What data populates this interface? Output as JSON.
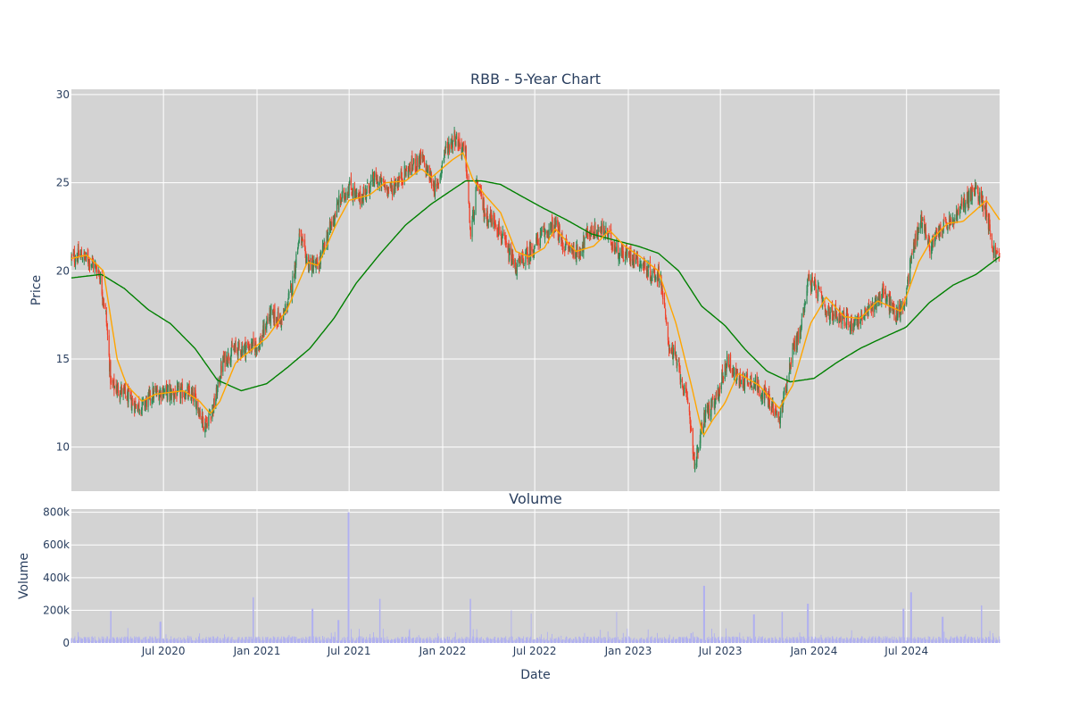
{
  "chart_data": [
    {
      "type": "candlestick",
      "title": "RBB - 5-Year Chart",
      "xlabel": "",
      "ylabel": "Price",
      "x_range": [
        "2020-01-02",
        "2024-12-31"
      ],
      "ylim": [
        7.5,
        30.3
      ],
      "y_ticks": [
        10,
        15,
        20,
        25,
        30
      ],
      "grid": true,
      "colors": {
        "up": "#2e8b57",
        "down": "#f0412a",
        "ma_short": "#ffa500",
        "ma_long": "#008000",
        "plot_bg": "#d3d3d3"
      },
      "close_anchors": [
        [
          "2020-01-02",
          20.7
        ],
        [
          "2020-01-20",
          20.9
        ],
        [
          "2020-02-10",
          20.5
        ],
        [
          "2020-02-25",
          20.0
        ],
        [
          "2020-03-10",
          17.5
        ],
        [
          "2020-03-20",
          13.5
        ],
        [
          "2020-04-10",
          13.2
        ],
        [
          "2020-05-01",
          12.5
        ],
        [
          "2020-05-20",
          12.3
        ],
        [
          "2020-06-10",
          13.0
        ],
        [
          "2020-07-01",
          13.2
        ],
        [
          "2020-07-20",
          13.0
        ],
        [
          "2020-08-10",
          13.1
        ],
        [
          "2020-09-01",
          12.8
        ],
        [
          "2020-09-20",
          11.2
        ],
        [
          "2020-10-10",
          12.5
        ],
        [
          "2020-10-25",
          14.8
        ],
        [
          "2020-11-15",
          15.5
        ],
        [
          "2021-01-05",
          15.8
        ],
        [
          "2021-01-25",
          17.5
        ],
        [
          "2021-02-20",
          17.2
        ],
        [
          "2021-03-10",
          19.0
        ],
        [
          "2021-03-25",
          22.0
        ],
        [
          "2021-04-10",
          20.5
        ],
        [
          "2021-05-01",
          20.2
        ],
        [
          "2021-05-20",
          22.0
        ],
        [
          "2021-06-10",
          23.8
        ],
        [
          "2021-07-01",
          24.8
        ],
        [
          "2021-07-20",
          24.0
        ],
        [
          "2021-08-20",
          25.2
        ],
        [
          "2021-09-20",
          24.6
        ],
        [
          "2021-10-20",
          25.6
        ],
        [
          "2021-11-20",
          26.4
        ],
        [
          "2021-12-20",
          24.5
        ],
        [
          "2022-01-05",
          26.8
        ],
        [
          "2022-01-25",
          27.6
        ],
        [
          "2022-02-15",
          26.6
        ],
        [
          "2022-02-25",
          22.0
        ],
        [
          "2022-03-10",
          25.0
        ],
        [
          "2022-03-25",
          23.2
        ],
        [
          "2022-04-15",
          22.8
        ],
        [
          "2022-05-10",
          21.0
        ],
        [
          "2022-05-25",
          20.2
        ],
        [
          "2022-06-20",
          21.0
        ],
        [
          "2022-07-15",
          22.0
        ],
        [
          "2022-08-10",
          22.6
        ],
        [
          "2022-08-25",
          21.5
        ],
        [
          "2022-09-25",
          21.0
        ],
        [
          "2022-10-15",
          22.2
        ],
        [
          "2022-11-15",
          22.3
        ],
        [
          "2022-12-15",
          21.0
        ],
        [
          "2023-01-15",
          20.8
        ],
        [
          "2023-02-15",
          19.8
        ],
        [
          "2023-03-05",
          19.8
        ],
        [
          "2023-03-20",
          16.0
        ],
        [
          "2023-04-10",
          14.5
        ],
        [
          "2023-05-01",
          12.0
        ],
        [
          "2023-05-12",
          8.9
        ],
        [
          "2023-06-01",
          12.0
        ],
        [
          "2023-06-20",
          12.4
        ],
        [
          "2023-07-15",
          15.0
        ],
        [
          "2023-08-05",
          13.8
        ],
        [
          "2023-09-01",
          13.8
        ],
        [
          "2023-10-01",
          12.8
        ],
        [
          "2023-10-25",
          11.5
        ],
        [
          "2023-11-20",
          15.5
        ],
        [
          "2023-12-05",
          16.5
        ],
        [
          "2023-12-20",
          19.5
        ],
        [
          "2024-01-10",
          18.8
        ],
        [
          "2024-01-25",
          17.5
        ],
        [
          "2024-02-15",
          17.6
        ],
        [
          "2024-03-15",
          17.0
        ],
        [
          "2024-04-15",
          17.6
        ],
        [
          "2024-05-15",
          18.8
        ],
        [
          "2024-06-10",
          17.5
        ],
        [
          "2024-06-25",
          18.0
        ],
        [
          "2024-07-15",
          21.5
        ],
        [
          "2024-08-01",
          23.0
        ],
        [
          "2024-08-15",
          21.3
        ],
        [
          "2024-09-10",
          22.5
        ],
        [
          "2024-10-01",
          22.8
        ],
        [
          "2024-10-25",
          24.0
        ],
        [
          "2024-11-15",
          24.6
        ],
        [
          "2024-12-05",
          23.5
        ],
        [
          "2024-12-18",
          21.2
        ],
        [
          "2024-12-31",
          20.7
        ]
      ],
      "ma_short_anchors": [
        [
          "2020-01-02",
          20.7
        ],
        [
          "2020-02-01",
          20.9
        ],
        [
          "2020-03-05",
          20.0
        ],
        [
          "2020-04-01",
          15.0
        ],
        [
          "2020-04-20",
          13.5
        ],
        [
          "2020-05-20",
          12.6
        ],
        [
          "2020-06-15",
          13.0
        ],
        [
          "2020-08-10",
          13.2
        ],
        [
          "2020-09-10",
          12.6
        ],
        [
          "2020-10-01",
          11.9
        ],
        [
          "2020-10-20",
          12.6
        ],
        [
          "2020-11-20",
          14.8
        ],
        [
          "2020-12-20",
          15.5
        ],
        [
          "2021-01-20",
          16.2
        ],
        [
          "2021-03-01",
          17.8
        ],
        [
          "2021-04-10",
          20.5
        ],
        [
          "2021-05-01",
          20.3
        ],
        [
          "2021-06-05",
          22.6
        ],
        [
          "2021-07-01",
          24.0
        ],
        [
          "2021-08-10",
          24.3
        ],
        [
          "2021-09-10",
          25.0
        ],
        [
          "2021-10-20",
          25.1
        ],
        [
          "2021-11-20",
          25.8
        ],
        [
          "2021-12-10",
          25.3
        ],
        [
          "2022-01-20",
          26.3
        ],
        [
          "2022-02-10",
          26.7
        ],
        [
          "2022-03-01",
          25.2
        ],
        [
          "2022-03-25",
          24.3
        ],
        [
          "2022-04-25",
          23.3
        ],
        [
          "2022-05-25",
          21.1
        ],
        [
          "2022-06-20",
          20.8
        ],
        [
          "2022-07-20",
          21.3
        ],
        [
          "2022-08-10",
          22.4
        ],
        [
          "2022-09-20",
          21.1
        ],
        [
          "2022-10-25",
          21.4
        ],
        [
          "2022-11-25",
          22.3
        ],
        [
          "2022-12-25",
          21.4
        ],
        [
          "2023-01-25",
          20.8
        ],
        [
          "2023-03-01",
          20.0
        ],
        [
          "2023-04-05",
          17.0
        ],
        [
          "2023-05-05",
          13.5
        ],
        [
          "2023-05-28",
          10.6
        ],
        [
          "2023-06-15",
          11.5
        ],
        [
          "2023-07-10",
          12.5
        ],
        [
          "2023-08-05",
          14.2
        ],
        [
          "2023-09-15",
          13.5
        ],
        [
          "2023-10-25",
          12.2
        ],
        [
          "2023-11-20",
          13.5
        ],
        [
          "2023-12-25",
          17.0
        ],
        [
          "2024-01-25",
          18.5
        ],
        [
          "2024-03-01",
          17.4
        ],
        [
          "2024-04-01",
          17.3
        ],
        [
          "2024-05-05",
          18.3
        ],
        [
          "2024-06-20",
          17.7
        ],
        [
          "2024-07-25",
          20.5
        ],
        [
          "2024-08-20",
          21.8
        ],
        [
          "2024-09-20",
          22.7
        ],
        [
          "2024-10-20",
          22.8
        ],
        [
          "2024-11-20",
          23.6
        ],
        [
          "2024-12-05",
          24.0
        ],
        [
          "2024-12-31",
          22.9
        ]
      ],
      "ma_long_anchors": [
        [
          "2020-01-02",
          19.6
        ],
        [
          "2020-03-01",
          19.8
        ],
        [
          "2020-04-15",
          19.0
        ],
        [
          "2020-06-01",
          17.8
        ],
        [
          "2020-07-15",
          17.0
        ],
        [
          "2020-09-01",
          15.6
        ],
        [
          "2020-10-15",
          13.8
        ],
        [
          "2020-12-01",
          13.2
        ],
        [
          "2021-01-20",
          13.6
        ],
        [
          "2021-03-01",
          14.5
        ],
        [
          "2021-04-15",
          15.6
        ],
        [
          "2021-06-01",
          17.3
        ],
        [
          "2021-07-15",
          19.3
        ],
        [
          "2021-09-01",
          21.0
        ],
        [
          "2021-10-20",
          22.6
        ],
        [
          "2021-12-10",
          23.8
        ],
        [
          "2022-01-20",
          24.6
        ],
        [
          "2022-02-15",
          25.1
        ],
        [
          "2022-03-20",
          25.1
        ],
        [
          "2022-04-25",
          24.9
        ],
        [
          "2022-06-01",
          24.3
        ],
        [
          "2022-07-15",
          23.6
        ],
        [
          "2022-09-01",
          22.9
        ],
        [
          "2022-10-20",
          22.1
        ],
        [
          "2022-12-10",
          21.7
        ],
        [
          "2023-01-20",
          21.4
        ],
        [
          "2023-03-01",
          21.0
        ],
        [
          "2023-04-10",
          20.0
        ],
        [
          "2023-05-25",
          18.0
        ],
        [
          "2023-07-10",
          16.9
        ],
        [
          "2023-08-20",
          15.5
        ],
        [
          "2023-10-01",
          14.3
        ],
        [
          "2023-11-15",
          13.7
        ],
        [
          "2024-01-01",
          13.9
        ],
        [
          "2024-02-15",
          14.8
        ],
        [
          "2024-04-01",
          15.6
        ],
        [
          "2024-05-15",
          16.2
        ],
        [
          "2024-06-30",
          16.8
        ],
        [
          "2024-08-15",
          18.2
        ],
        [
          "2024-10-01",
          19.2
        ],
        [
          "2024-11-15",
          19.8
        ],
        [
          "2024-12-31",
          20.8
        ]
      ]
    },
    {
      "type": "bar",
      "title": "Volume",
      "xlabel": "Date",
      "ylabel": "Volume",
      "ylim": [
        0,
        820000
      ],
      "y_ticks": [
        0,
        200000,
        400000,
        600000,
        800000
      ],
      "y_tick_labels": [
        "0",
        "200k",
        "400k",
        "600k",
        "800k"
      ],
      "x_ticks": [
        "2020-07-01",
        "2021-01-01",
        "2021-07-01",
        "2022-01-01",
        "2022-07-01",
        "2023-01-01",
        "2023-07-01",
        "2024-01-01",
        "2024-07-01"
      ],
      "x_tick_labels": [
        "Jul 2020",
        "Jan 2021",
        "Jul 2021",
        "Jan 2022",
        "Jul 2022",
        "Jan 2023",
        "Jul 2023",
        "Jan 2024",
        "Jul 2024"
      ],
      "bar_color": "#b0b0f0",
      "baseline": 32000,
      "spikes": [
        [
          "2020-03-20",
          195000
        ],
        [
          "2020-06-25",
          130000
        ],
        [
          "2020-12-25",
          280000
        ],
        [
          "2021-04-20",
          210000
        ],
        [
          "2021-06-30",
          800000
        ],
        [
          "2021-06-10",
          140000
        ],
        [
          "2021-08-30",
          270000
        ],
        [
          "2022-02-25",
          270000
        ],
        [
          "2022-05-15",
          200000
        ],
        [
          "2022-06-25",
          180000
        ],
        [
          "2022-12-10",
          190000
        ],
        [
          "2023-05-05",
          60000
        ],
        [
          "2023-05-30",
          350000
        ],
        [
          "2023-09-05",
          175000
        ],
        [
          "2023-10-30",
          190000
        ],
        [
          "2023-12-20",
          240000
        ],
        [
          "2024-06-25",
          210000
        ],
        [
          "2024-07-10",
          310000
        ],
        [
          "2024-09-10",
          160000
        ],
        [
          "2024-11-25",
          230000
        ]
      ]
    }
  ]
}
